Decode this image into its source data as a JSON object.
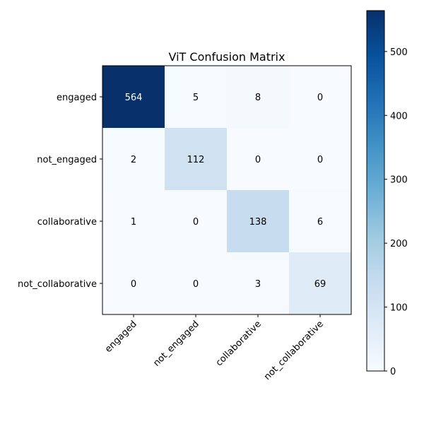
{
  "chart_data": {
    "type": "heatmap",
    "title": "ViT Confusion Matrix",
    "xlabel": "",
    "ylabel": "",
    "x_categories": [
      "engaged",
      "not_engaged",
      "collaborative",
      "not_collaborative"
    ],
    "y_categories": [
      "engaged",
      "not_engaged",
      "collaborative",
      "not_collaborative"
    ],
    "values": [
      [
        564,
        5,
        8,
        0
      ],
      [
        2,
        112,
        0,
        0
      ],
      [
        1,
        0,
        138,
        6
      ],
      [
        0,
        0,
        3,
        69
      ]
    ],
    "colormap": "Blues",
    "colorbar": {
      "min": 0,
      "max": 564,
      "ticks": [
        0,
        100,
        200,
        300,
        400,
        500
      ]
    },
    "x_tick_rotation_deg": 45,
    "grid": false
  }
}
